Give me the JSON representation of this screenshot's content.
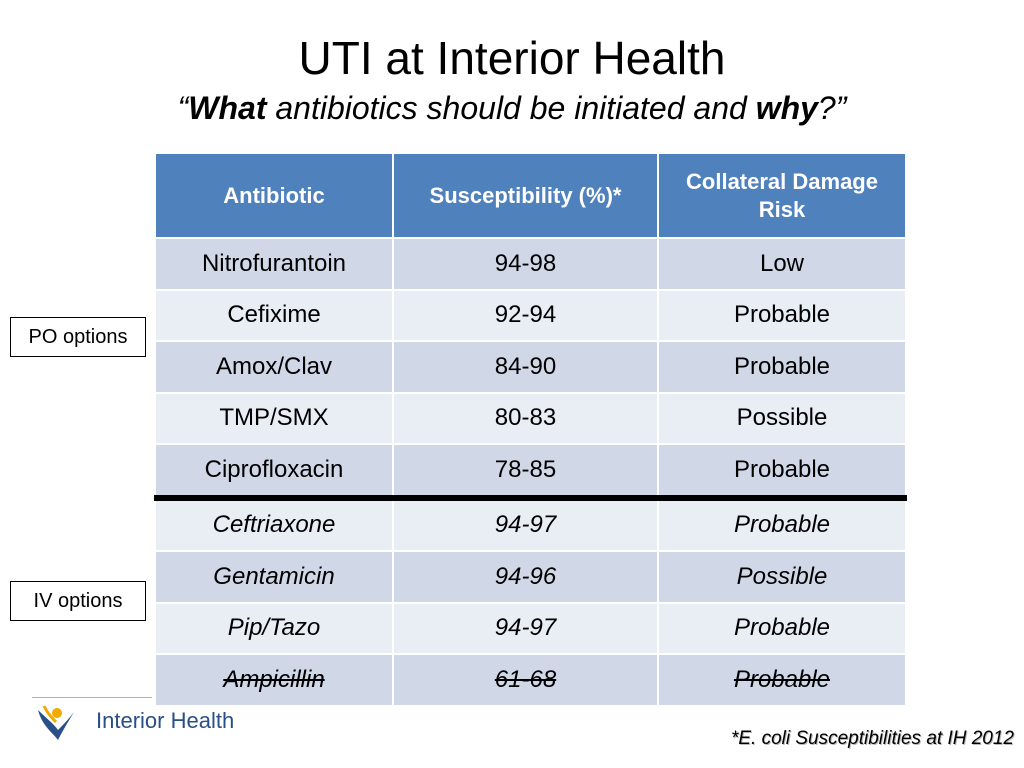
{
  "title": "UTI at Interior Health",
  "subtitle": {
    "open_quote": "“",
    "what": "What",
    "middle": " antibiotics should be initiated and ",
    "why": "why",
    "close": "?”"
  },
  "table": {
    "headers": [
      "Antibiotic",
      "Susceptibility (%)*",
      "Collateral Damage Risk"
    ],
    "rows": [
      {
        "antibiotic": "Nitrofurantoin",
        "susceptibility": "94-98",
        "risk": "Low"
      },
      {
        "antibiotic": "Cefixime",
        "susceptibility": "92-94",
        "risk": "Probable"
      },
      {
        "antibiotic": "Amox/Clav",
        "susceptibility": "84-90",
        "risk": "Probable"
      },
      {
        "antibiotic": "TMP/SMX",
        "susceptibility": "80-83",
        "risk": "Possible"
      },
      {
        "antibiotic": "Ciprofloxacin",
        "susceptibility": "78-85",
        "risk": "Probable"
      },
      {
        "antibiotic": "Ceftriaxone",
        "susceptibility": "94-97",
        "risk": "Probable"
      },
      {
        "antibiotic": "Gentamicin",
        "susceptibility": "94-96",
        "risk": "Possible"
      },
      {
        "antibiotic": "Pip/Tazo",
        "susceptibility": "94-97",
        "risk": "Probable"
      },
      {
        "antibiotic": "Ampicillin",
        "susceptibility": "61-68",
        "risk": "Probable"
      }
    ]
  },
  "callouts": {
    "po": "PO options",
    "iv": "IV options"
  },
  "logo": {
    "text": "Interior Health"
  },
  "footnote": "*E. coli Susceptibilities at IH 2012",
  "colors": {
    "header_bg": "#4f81bd",
    "row_odd": "#d0d8e8",
    "row_even": "#e9edf4"
  }
}
